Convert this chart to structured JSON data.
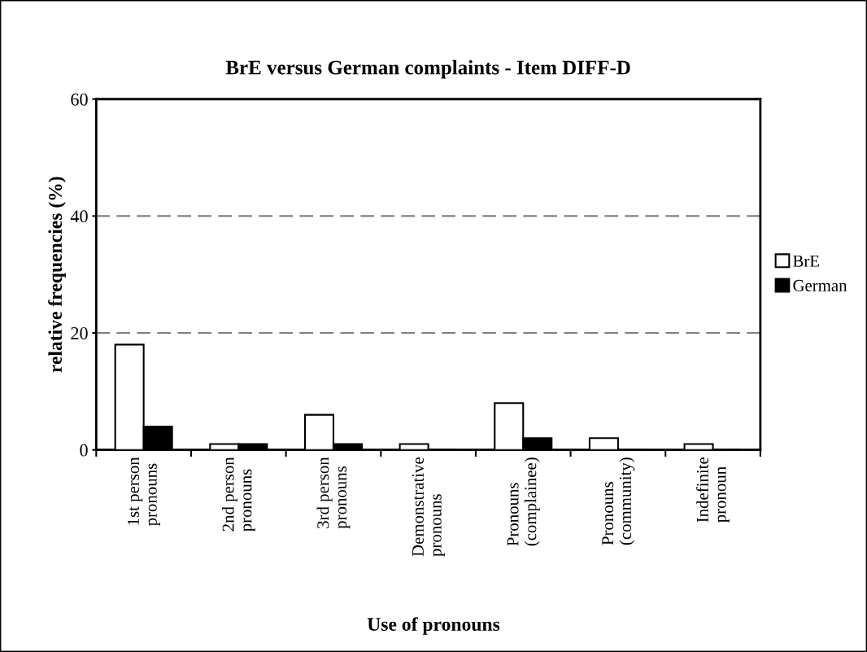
{
  "chart_data": {
    "type": "bar",
    "title": "BrE versus German complaints - Item DIFF-D",
    "xlabel": "Use of pronouns",
    "ylabel": "relative frequencies (%)",
    "categories": [
      "1st person\npronouns",
      "2nd person\npronouns",
      "3rd person\npronouns",
      "Demonstrative\npronouns",
      "Pronouns\n(complainee)",
      "Pronouns\n(community)",
      "Indefinite\npronoun"
    ],
    "series": [
      {
        "name": "BrE",
        "color": "#ffffff",
        "values": [
          18,
          1,
          6,
          1,
          8,
          2,
          1
        ]
      },
      {
        "name": "German",
        "color": "#000000",
        "values": [
          4,
          1,
          1,
          0,
          2,
          0,
          0
        ]
      }
    ],
    "ylim": [
      0,
      60
    ],
    "yticks": [
      0,
      20,
      40,
      60
    ],
    "grid": "y",
    "legend": "right"
  }
}
